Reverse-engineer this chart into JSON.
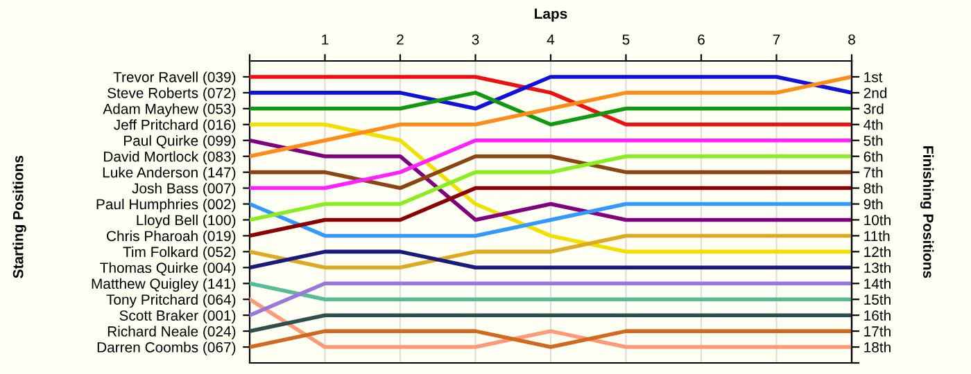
{
  "chart_data": {
    "type": "line",
    "xlabel": "Laps",
    "y2label": "Finishing Positions",
    "annotations": [
      "Starting Positions"
    ],
    "x": [
      0,
      1,
      2,
      3,
      4,
      5,
      6,
      7,
      8
    ],
    "xlim": [
      0,
      8
    ],
    "xticks": [
      {
        "value": 0,
        "label": null
      },
      1,
      2,
      3,
      4,
      5,
      6,
      7,
      8
    ],
    "y_categories": [
      "Trevor Ravell (039)",
      "Steve Roberts (072)",
      "Adam Mayhew (053)",
      "Jeff Pritchard (016)",
      "Paul Quirke (099)",
      "David Mortlock (083)",
      "Luke Anderson (147)",
      "Josh Bass (007)",
      "Paul Humphries (002)",
      "Lloyd Bell (100)",
      "Chris Pharoah (019)",
      "Tim Folkard (052)",
      "Thomas Quirke (004)",
      "Matthew Quigley (141)",
      "Tony Pritchard (064)",
      "Scott Braker (001)",
      "Richard Neale (024)",
      "Darren Coombs (067)"
    ],
    "y2lim": [
      19,
      0
    ],
    "y2ticks": [
      {
        "value": 1,
        "label": "1st"
      },
      {
        "value": 2,
        "label": "2nd"
      },
      {
        "value": 3,
        "label": "3rd"
      },
      {
        "value": 4,
        "label": "4th"
      },
      {
        "value": 5,
        "label": "5th"
      },
      {
        "value": 6,
        "label": "6th"
      },
      {
        "value": 7,
        "label": "7th"
      },
      {
        "value": 8,
        "label": "8th"
      },
      {
        "value": 9,
        "label": "9th"
      },
      {
        "value": 10,
        "label": "10th"
      },
      {
        "value": 11,
        "label": "11th"
      },
      {
        "value": 12,
        "label": "12th"
      },
      {
        "value": 13,
        "label": "13th"
      },
      {
        "value": 14,
        "label": "14th"
      },
      {
        "value": 15,
        "label": "15th"
      },
      {
        "value": 16,
        "label": "16th"
      },
      {
        "value": 17,
        "label": "17th"
      },
      {
        "value": 18,
        "label": "18th"
      },
      {
        "value": 19,
        "label": null
      }
    ],
    "grid": "x",
    "legend": false,
    "marker": "none",
    "line_style": "solid",
    "series": [
      {
        "axis": "y2",
        "color": "#ee1111",
        "values": [
          1,
          1,
          1,
          1,
          2,
          4,
          4,
          4,
          4
        ]
      },
      {
        "axis": "y2",
        "color": "#1111dd",
        "values": [
          2,
          2,
          2,
          3,
          1,
          1,
          1,
          1,
          2
        ]
      },
      {
        "axis": "y2",
        "color": "#119911",
        "values": [
          3,
          3,
          3,
          2,
          4,
          3,
          3,
          3,
          3
        ]
      },
      {
        "axis": "y2",
        "color": "#f0e000",
        "values": [
          4,
          4,
          5,
          9,
          11,
          12,
          12,
          12,
          12
        ]
      },
      {
        "axis": "y2",
        "color": "#800080",
        "values": [
          5,
          6,
          6,
          10,
          9,
          10,
          10,
          10,
          10
        ]
      },
      {
        "axis": "y2",
        "color": "#ff8c1a",
        "values": [
          6,
          5,
          4,
          4,
          3,
          2,
          2,
          2,
          1
        ]
      },
      {
        "axis": "y2",
        "color": "#8b4513",
        "values": [
          7,
          7,
          8,
          6,
          6,
          7,
          7,
          7,
          7
        ]
      },
      {
        "axis": "y2",
        "color": "#ff22ff",
        "values": [
          8,
          8,
          7,
          5,
          5,
          5,
          5,
          5,
          5
        ]
      },
      {
        "axis": "y2",
        "color": "#3399ff",
        "values": [
          9,
          11,
          11,
          11,
          10,
          9,
          9,
          9,
          9
        ]
      },
      {
        "axis": "y2",
        "color": "#88ee22",
        "values": [
          10,
          9,
          9,
          7,
          7,
          6,
          6,
          6,
          6
        ]
      },
      {
        "axis": "y2",
        "color": "#8b0000",
        "values": [
          11,
          10,
          10,
          8,
          8,
          8,
          8,
          8,
          8
        ]
      },
      {
        "axis": "y2",
        "color": "#ddaa22",
        "values": [
          12,
          13,
          13,
          12,
          12,
          11,
          11,
          11,
          11
        ]
      },
      {
        "axis": "y2",
        "color": "#1a1a7a",
        "values": [
          13,
          12,
          12,
          13,
          13,
          13,
          13,
          13,
          13
        ]
      },
      {
        "axis": "y2",
        "color": "#55bb99",
        "values": [
          14,
          15,
          15,
          15,
          15,
          15,
          15,
          15,
          15
        ]
      },
      {
        "axis": "y2",
        "color": "#ff9977",
        "values": [
          15,
          18,
          18,
          18,
          17,
          18,
          18,
          18,
          18
        ]
      },
      {
        "axis": "y2",
        "color": "#9977dd",
        "values": [
          16,
          14,
          14,
          14,
          14,
          14,
          14,
          14,
          14
        ]
      },
      {
        "axis": "y2",
        "color": "#2f4f4f",
        "values": [
          17,
          16,
          16,
          16,
          16,
          16,
          16,
          16,
          16
        ]
      },
      {
        "axis": "y2",
        "color": "#d2691e",
        "values": [
          18,
          17,
          17,
          17,
          18,
          17,
          17,
          17,
          17
        ]
      }
    ]
  }
}
